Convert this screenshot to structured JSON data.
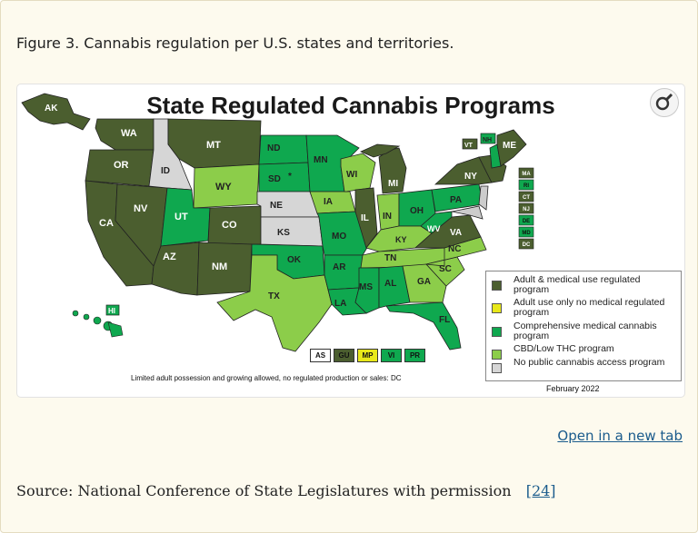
{
  "caption": "Figure 3. Cannabis regulation per U.S. states and territories.",
  "figure": {
    "title": "State Regulated Cannabis Programs",
    "zoom_icon": "magnifier-icon",
    "colors": {
      "adult_medical": "#4b5e2f",
      "adult_only": "#e8e81a",
      "comprehensive_medical": "#0fa84f",
      "cbd_low_thc": "#8ccd4a",
      "no_program": "#d6d6d6"
    },
    "states": {
      "AK": "adult_medical",
      "WA": "adult_medical",
      "OR": "adult_medical",
      "CA": "adult_medical",
      "NV": "adult_medical",
      "ID": "no_program",
      "MT": "adult_medical",
      "WY": "cbd_low_thc",
      "UT": "comprehensive_medical",
      "CO": "adult_medical",
      "AZ": "adult_medical",
      "NM": "adult_medical",
      "ND": "comprehensive_medical",
      "SD": "comprehensive_medical",
      "NE": "no_program",
      "KS": "no_program",
      "OK": "comprehensive_medical",
      "TX": "cbd_low_thc",
      "MN": "comprehensive_medical",
      "IA": "cbd_low_thc",
      "MO": "comprehensive_medical",
      "AR": "comprehensive_medical",
      "LA": "comprehensive_medical",
      "WI": "cbd_low_thc",
      "IL": "adult_medical",
      "MI": "adult_medical",
      "IN": "cbd_low_thc",
      "OH": "comprehensive_medical",
      "KY": "cbd_low_thc",
      "TN": "cbd_low_thc",
      "MS": "comprehensive_medical",
      "AL": "comprehensive_medical",
      "GA": "cbd_low_thc",
      "FL": "comprehensive_medical",
      "SC": "cbd_low_thc",
      "NC": "cbd_low_thc",
      "VA": "adult_medical",
      "WV": "comprehensive_medical",
      "PA": "comprehensive_medical",
      "NY": "adult_medical",
      "VT": "adult_medical",
      "NH": "comprehensive_medical",
      "ME": "adult_medical",
      "HI": "comprehensive_medical"
    },
    "sd_marker": "*",
    "northeast_boxes": [
      {
        "code": "MA",
        "status": "adult_medical"
      },
      {
        "code": "RI",
        "status": "comprehensive_medical"
      },
      {
        "code": "CT",
        "status": "adult_medical"
      },
      {
        "code": "NJ",
        "status": "adult_medical"
      },
      {
        "code": "DE",
        "status": "comprehensive_medical"
      },
      {
        "code": "MD",
        "status": "comprehensive_medical"
      },
      {
        "code": "DC",
        "status": "adult_medical"
      }
    ],
    "territories": [
      {
        "code": "AS",
        "status": "none"
      },
      {
        "code": "GU",
        "status": "adult_medical"
      },
      {
        "code": "MP",
        "status": "adult_only"
      },
      {
        "code": "VI",
        "status": "comprehensive_medical"
      },
      {
        "code": "PR",
        "status": "comprehensive_medical"
      }
    ],
    "legend": [
      {
        "key": "adult_medical",
        "label": "Adult & medical use regulated program"
      },
      {
        "key": "adult_only",
        "label": "Adult use only no medical regulated program"
      },
      {
        "key": "comprehensive_medical",
        "label": "Comprehensive medical cannabis program"
      },
      {
        "key": "cbd_low_thc",
        "label": "CBD/Low THC program"
      },
      {
        "key": "no_program",
        "label": "No public cannabis access program"
      }
    ],
    "note": "Limited adult possession and growing allowed, no regulated production or sales: DC",
    "date": "February 2022"
  },
  "open_link": "Open in a new tab",
  "source": {
    "text": "Source: National Conference of State Legislatures with permission",
    "ref": "[24]"
  }
}
